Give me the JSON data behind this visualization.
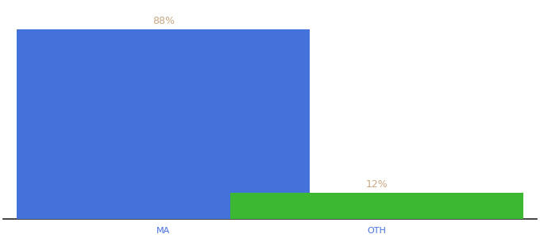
{
  "categories": [
    "MA",
    "OTH"
  ],
  "values": [
    88,
    12
  ],
  "bar_colors": [
    "#4472db",
    "#3cb832"
  ],
  "label_color": "#c8a882",
  "label_fontsize": 9,
  "xlabel_fontsize": 8,
  "xlabel_color": "#4472db",
  "background_color": "#ffffff",
  "ylim": [
    0,
    100
  ],
  "bar_width": 0.55,
  "x_positions": [
    0.3,
    0.7
  ],
  "xlim": [
    0.0,
    1.0
  ]
}
